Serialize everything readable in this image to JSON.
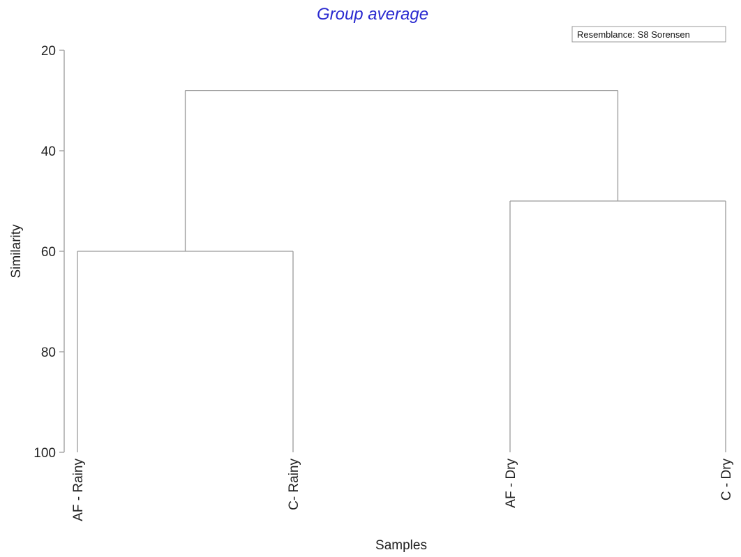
{
  "chart_data": {
    "type": "dendrogram",
    "title": "Group average",
    "legend": "Resemblance: S8 Sorensen",
    "legend_position": "top-right",
    "xlabel": "Samples",
    "ylabel": "Similarity",
    "ylim": [
      20,
      100
    ],
    "yticks": [
      20,
      40,
      60,
      80,
      100
    ],
    "y_inverted": true,
    "grid": false,
    "leaves": [
      "AF - Rainy",
      "C- Rainy",
      "AF - Dry",
      "C - Dry"
    ],
    "merges": [
      {
        "children": [
          "AF - Rainy",
          "C- Rainy"
        ],
        "similarity": 60
      },
      {
        "children": [
          "AF - Dry",
          "C - Dry"
        ],
        "similarity": 50
      },
      {
        "children": [
          "cluster-1",
          "cluster-2"
        ],
        "similarity": 28
      }
    ],
    "colors": {
      "title": "#2a2ad0",
      "lines": "#9a9a9a"
    }
  }
}
